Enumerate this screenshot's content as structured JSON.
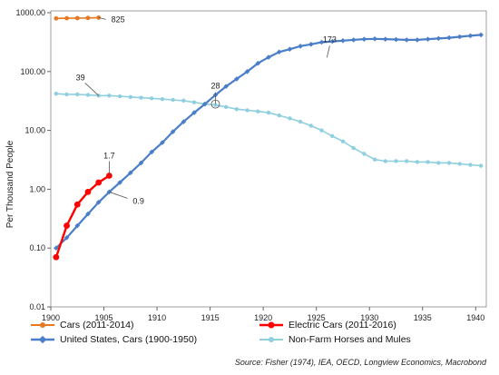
{
  "chart_data": {
    "type": "line",
    "title": "",
    "xlabel": "",
    "ylabel": "Per Thousand People",
    "yscale": "log",
    "ylim": [
      0.01,
      1000
    ],
    "xlim": [
      1900,
      1941
    ],
    "x_ticks": [
      1900,
      1905,
      1910,
      1915,
      1920,
      1925,
      1930,
      1935,
      1940
    ],
    "y_ticks": [
      "0.01",
      "0.10",
      "1.00",
      "10.00",
      "100.00",
      "1000.00"
    ],
    "y_tick_values": [
      0.01,
      0.1,
      1,
      10,
      100,
      1000
    ],
    "grid": false,
    "legend_position": "bottom",
    "series": [
      {
        "name": "Cars (2011-2014)",
        "color": "#e87722",
        "marker": "circle",
        "x": [
          1900.5,
          1901.5,
          1902.5,
          1903.5,
          1904.5
        ],
        "y": [
          800,
          805,
          810,
          815,
          825
        ]
      },
      {
        "name": "Electric Cars (2011-2016)",
        "color": "#ff0000",
        "marker": "circle",
        "x": [
          1900.5,
          1901.5,
          1902.5,
          1903.5,
          1904.5,
          1905.5
        ],
        "y": [
          0.07,
          0.24,
          0.55,
          0.9,
          1.3,
          1.7
        ]
      },
      {
        "name": "United States, Cars (1900-1950)",
        "color": "#4a7ec8",
        "marker": "diamond",
        "x": [
          1900.5,
          1901.5,
          1902.5,
          1903.5,
          1904.5,
          1905.5,
          1906.5,
          1907.5,
          1908.5,
          1909.5,
          1910.5,
          1911.5,
          1912.5,
          1913.5,
          1914.5,
          1915.5,
          1916.5,
          1917.5,
          1918.5,
          1919.5,
          1920.5,
          1921.5,
          1922.5,
          1923.5,
          1924.5,
          1925.5,
          1926.5,
          1927.5,
          1928.5,
          1929.5,
          1930.5,
          1931.5,
          1932.5,
          1933.5,
          1934.5,
          1935.5,
          1936.5,
          1937.5,
          1938.5,
          1939.5,
          1940.5
        ],
        "y": [
          0.1,
          0.15,
          0.24,
          0.38,
          0.6,
          0.9,
          1.3,
          1.9,
          2.8,
          4.3,
          6.2,
          9.5,
          14,
          20,
          28,
          40,
          56,
          75,
          100,
          138,
          175,
          215,
          240,
          270,
          290,
          315,
          325,
          335,
          345,
          355,
          360,
          355,
          350,
          345,
          345,
          355,
          365,
          375,
          390,
          405,
          420
        ]
      },
      {
        "name": "Non-Farm Horses and Mules",
        "color": "#8fcfdf",
        "marker": "circle",
        "x": [
          1900.5,
          1901.5,
          1902.5,
          1903.5,
          1904.5,
          1905.5,
          1906.5,
          1907.5,
          1908.5,
          1909.5,
          1910.5,
          1911.5,
          1912.5,
          1913.5,
          1914.5,
          1915.5,
          1916.5,
          1917.5,
          1918.5,
          1919.5,
          1920.5,
          1921.5,
          1922.5,
          1923.5,
          1924.5,
          1925.5,
          1926.5,
          1927.5,
          1928.5,
          1929.5,
          1930.5,
          1931.5,
          1932.5,
          1933.5,
          1934.5,
          1935.5,
          1936.5,
          1937.5,
          1938.5,
          1939.5,
          1940.5
        ],
        "y": [
          42,
          41,
          41,
          40,
          39,
          39,
          38,
          37,
          36,
          35,
          34,
          33,
          32,
          30,
          28,
          27,
          25,
          23,
          22,
          21,
          20,
          18,
          16,
          14,
          12,
          10,
          8,
          6.5,
          5,
          4,
          3.2,
          3,
          3,
          3,
          2.9,
          2.9,
          2.8,
          2.8,
          2.7,
          2.6,
          2.5
        ]
      }
    ],
    "annotations": [
      {
        "text": "825",
        "x": 1904.5,
        "y": 825
      },
      {
        "text": "39",
        "x": 1904.5,
        "y": 39
      },
      {
        "text": "1.7",
        "x": 1905.5,
        "y": 1.7
      },
      {
        "text": "0.9",
        "x": 1905.5,
        "y": 0.9
      },
      {
        "text": "28",
        "x": 1915.5,
        "y": 28
      },
      {
        "text": "173",
        "x": 1926.0,
        "y": 173
      }
    ],
    "source": "Source: Fisher (1974), IEA, OECD, Longview Economics, Macrobond"
  }
}
